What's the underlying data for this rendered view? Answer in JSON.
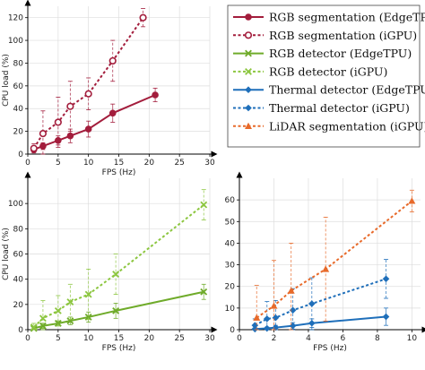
{
  "chart_data": [
    {
      "type": "line",
      "panel": "top-left",
      "xlabel": "FPS (Hz)",
      "ylabel": "CPU load (%)",
      "xlim": [
        0,
        30
      ],
      "ylim": [
        0,
        130
      ],
      "xticks": [
        0,
        5,
        10,
        15,
        20,
        25,
        30
      ],
      "yticks": [
        0,
        20,
        40,
        60,
        80,
        100,
        120
      ],
      "grid": true,
      "series": [
        {
          "name": "RGB segmentation (EdgeTPU)",
          "color": "#a31d3c",
          "dashed": false,
          "marker": "circle",
          "x": [
            1,
            2.5,
            5,
            7,
            10,
            14,
            21
          ],
          "y": [
            4,
            7,
            12,
            16,
            22,
            36,
            52
          ],
          "err": [
            2,
            3,
            4,
            6,
            7,
            8,
            6
          ]
        },
        {
          "name": "RGB segmentation (iGPU)",
          "color": "#a31d3c",
          "dashed": true,
          "marker": "circle-open",
          "x": [
            1,
            2.5,
            5,
            7,
            10,
            14,
            19
          ],
          "y": [
            5,
            18,
            28,
            42,
            53,
            82,
            120
          ],
          "err": [
            4,
            20,
            22,
            22,
            14,
            18,
            8
          ]
        }
      ]
    },
    {
      "type": "line",
      "panel": "bottom-left",
      "xlabel": "FPS (Hz)",
      "ylabel": "CPU load (%)",
      "xlim": [
        0,
        30
      ],
      "ylim": [
        0,
        120
      ],
      "xticks": [
        0,
        5,
        10,
        15,
        20,
        25,
        30
      ],
      "yticks": [
        0,
        20,
        40,
        60,
        80,
        100
      ],
      "grid": true,
      "series": [
        {
          "name": "RGB detector (EdgeTPU)",
          "color": "#6fab2a",
          "dashed": false,
          "marker": "x",
          "x": [
            1,
            2.5,
            5,
            7,
            10,
            14.5,
            29
          ],
          "y": [
            1,
            3,
            5,
            7,
            10,
            15,
            30
          ],
          "err": [
            1,
            2,
            2,
            3,
            4,
            6,
            6
          ]
        },
        {
          "name": "RGB detector (iGPU)",
          "color": "#8cc63f",
          "dashed": true,
          "marker": "x",
          "x": [
            1,
            2.5,
            5,
            7,
            10,
            14.5,
            29
          ],
          "y": [
            2,
            9,
            15,
            22,
            28,
            44,
            99
          ],
          "err": [
            3,
            14,
            12,
            14,
            20,
            16,
            12
          ]
        }
      ]
    },
    {
      "type": "line",
      "panel": "bottom-right",
      "xlabel": "FPS (Hz)",
      "ylabel": "",
      "xlim": [
        0,
        10.5
      ],
      "ylim": [
        0,
        70
      ],
      "xticks": [
        0,
        2,
        4,
        6,
        8,
        10
      ],
      "yticks": [
        0,
        10,
        20,
        30,
        40,
        50,
        60
      ],
      "grid": true,
      "series": [
        {
          "name": "Thermal detector (EdgeTPU)",
          "color": "#1f6fba",
          "dashed": false,
          "marker": "diamond",
          "x": [
            0.9,
            1.6,
            2.1,
            3.1,
            4.2,
            8.5
          ],
          "y": [
            0.3,
            0.6,
            1,
            1.8,
            3,
            6
          ],
          "err": [
            0.5,
            0.6,
            1,
            1.5,
            2,
            4
          ]
        },
        {
          "name": "Thermal detector (iGPU)",
          "color": "#1f6fba",
          "dashed": true,
          "marker": "diamond",
          "x": [
            0.9,
            1.6,
            2.1,
            3.1,
            4.2,
            8.5
          ],
          "y": [
            2,
            5,
            5.5,
            9,
            12,
            23.5
          ],
          "err": [
            3,
            8,
            8,
            10,
            12,
            9
          ]
        },
        {
          "name": "LiDAR segmentation (iGPU)",
          "color": "#e86a2a",
          "dashed": true,
          "marker": "triangle",
          "x": [
            1,
            2,
            3,
            5,
            10
          ],
          "y": [
            5.5,
            11,
            18,
            28,
            59.5
          ],
          "err": [
            15,
            21,
            22,
            24,
            5
          ]
        }
      ]
    }
  ]
}
